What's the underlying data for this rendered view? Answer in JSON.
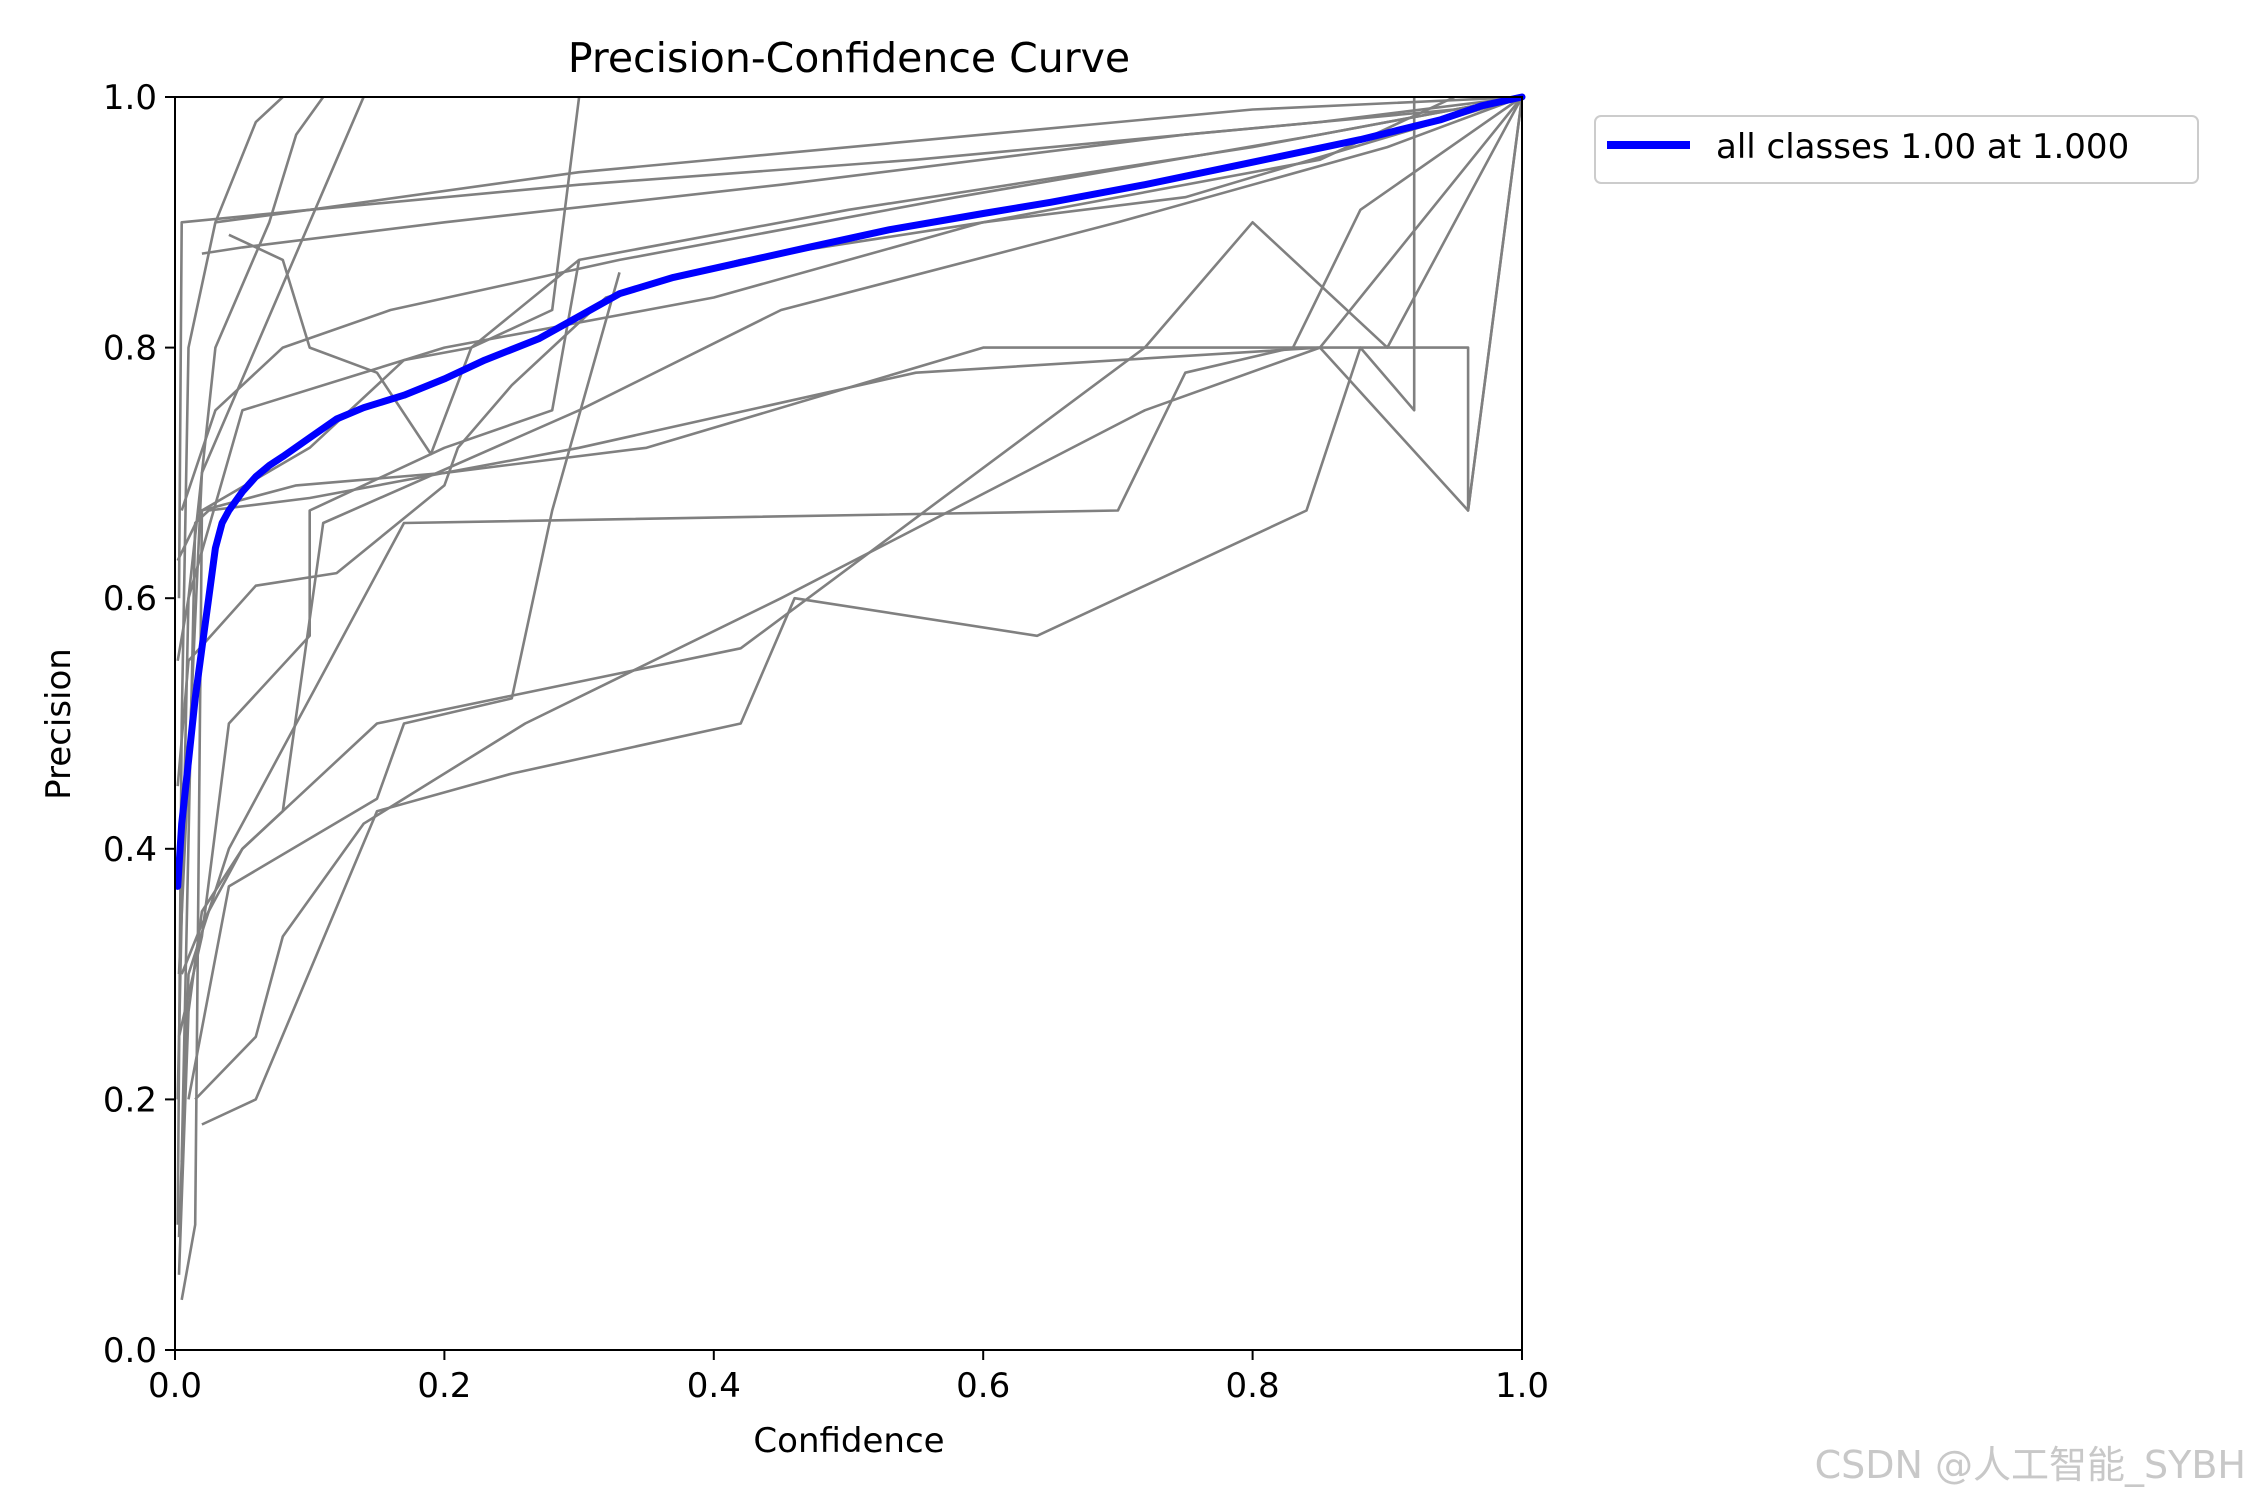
{
  "chart_data": {
    "type": "line",
    "title": "Precision-Confidence Curve",
    "xlabel": "Confidence",
    "ylabel": "Precision",
    "xlim": [
      0.0,
      1.0
    ],
    "ylim": [
      0.0,
      1.0
    ],
    "xticks": [
      "0.0",
      "0.2",
      "0.4",
      "0.6",
      "0.8",
      "1.0"
    ],
    "yticks": [
      "0.0",
      "0.2",
      "0.4",
      "0.6",
      "0.8",
      "1.0"
    ],
    "grid": false,
    "legend_position": "outside-top-right",
    "class_color": "#808080",
    "series": [
      {
        "name": "all classes 1.00 at 1.000",
        "color": "#0000ff",
        "x": [
          0.002,
          0.005,
          0.01,
          0.015,
          0.02,
          0.025,
          0.03,
          0.035,
          0.04,
          0.05,
          0.06,
          0.07,
          0.08,
          0.1,
          0.12,
          0.14,
          0.17,
          0.2,
          0.23,
          0.27,
          0.3,
          0.33,
          0.37,
          0.42,
          0.47,
          0.53,
          0.6,
          0.65,
          0.72,
          0.8,
          0.88,
          0.94,
          0.97,
          1.0
        ],
        "values": [
          0.37,
          0.42,
          0.47,
          0.52,
          0.56,
          0.6,
          0.64,
          0.66,
          0.67,
          0.685,
          0.697,
          0.706,
          0.713,
          0.728,
          0.743,
          0.752,
          0.762,
          0.775,
          0.79,
          0.807,
          0.825,
          0.843,
          0.856,
          0.868,
          0.88,
          0.894,
          0.907,
          0.916,
          0.93,
          0.948,
          0.966,
          0.982,
          0.993,
          1.0
        ]
      }
    ],
    "class_curves": [
      {
        "x": [
          0.002,
          0.005,
          0.01,
          0.03,
          0.06,
          0.08
        ],
        "values": [
          0.1,
          0.5,
          0.8,
          0.9,
          0.98,
          1.0
        ]
      },
      {
        "x": [
          0.002,
          0.01,
          0.03,
          0.07,
          0.09,
          0.11
        ],
        "values": [
          0.2,
          0.6,
          0.8,
          0.9,
          0.97,
          1.0
        ]
      },
      {
        "x": [
          0.003,
          0.02,
          0.06,
          0.12,
          0.14
        ],
        "values": [
          0.3,
          0.7,
          0.8,
          0.95,
          1.0
        ]
      },
      {
        "x": [
          0.003,
          0.005,
          0.1,
          0.3,
          0.6,
          0.8,
          1.0
        ],
        "values": [
          0.6,
          0.9,
          0.91,
          0.94,
          0.97,
          0.99,
          1.0
        ]
      },
      {
        "x": [
          0.005,
          0.03,
          0.08,
          0.16,
          0.33,
          0.58,
          0.85,
          1.0
        ],
        "values": [
          0.67,
          0.75,
          0.8,
          0.83,
          0.87,
          0.92,
          0.97,
          1.0
        ]
      },
      {
        "x": [
          0.02,
          0.05,
          0.2,
          0.45,
          0.75,
          0.95,
          1.0
        ],
        "values": [
          0.875,
          0.88,
          0.9,
          0.93,
          0.97,
          0.99,
          1.0
        ]
      },
      {
        "x": [
          0.03,
          0.1,
          0.3,
          0.55,
          0.85,
          1.0
        ],
        "values": [
          0.9,
          0.91,
          0.93,
          0.95,
          0.98,
          1.0
        ]
      },
      {
        "x": [
          0.04,
          0.08,
          0.1,
          0.15,
          0.19,
          0.22,
          0.3,
          0.5,
          0.8,
          1.0
        ],
        "values": [
          0.89,
          0.87,
          0.8,
          0.78,
          0.715,
          0.8,
          0.87,
          0.91,
          0.96,
          1.0
        ]
      },
      {
        "x": [
          0.002,
          0.02,
          0.1,
          0.17,
          0.22,
          0.28,
          0.3
        ],
        "values": [
          0.63,
          0.67,
          0.72,
          0.79,
          0.8,
          0.83,
          1.0
        ]
      },
      {
        "x": [
          0.002,
          0.01,
          0.06,
          0.12,
          0.2,
          0.21,
          0.25,
          0.32,
          0.42,
          0.6,
          0.75,
          1.0
        ],
        "values": [
          0.45,
          0.55,
          0.61,
          0.62,
          0.69,
          0.72,
          0.77,
          0.84,
          0.87,
          0.9,
          0.92,
          1.0
        ]
      },
      {
        "x": [
          0.002,
          0.01,
          0.05,
          0.2,
          0.4,
          0.6,
          0.85,
          0.95
        ],
        "values": [
          0.55,
          0.6,
          0.75,
          0.8,
          0.84,
          0.9,
          0.95,
          1.0
        ]
      },
      {
        "x": [
          0.005,
          0.02,
          0.05,
          0.08,
          0.11,
          0.3,
          0.45,
          0.7,
          0.9,
          1.0
        ],
        "values": [
          0.3,
          0.34,
          0.4,
          0.43,
          0.66,
          0.75,
          0.83,
          0.9,
          0.96,
          1.0
        ]
      },
      {
        "x": [
          0.003,
          0.02,
          0.04,
          0.1,
          0.1,
          0.2,
          0.28,
          0.3
        ],
        "values": [
          0.25,
          0.33,
          0.5,
          0.57,
          0.67,
          0.72,
          0.75,
          0.87
        ]
      },
      {
        "x": [
          0.01,
          0.04,
          0.15,
          0.17,
          0.25,
          0.28,
          0.33
        ],
        "values": [
          0.2,
          0.37,
          0.44,
          0.5,
          0.52,
          0.67,
          0.86
        ]
      },
      {
        "x": [
          0.015,
          0.06,
          0.08,
          0.14,
          0.26,
          0.45,
          0.72,
          0.85,
          0.96,
          1.0
        ],
        "values": [
          0.2,
          0.25,
          0.33,
          0.42,
          0.5,
          0.6,
          0.75,
          0.8,
          0.67,
          1.0
        ]
      },
      {
        "x": [
          0.02,
          0.06,
          0.15,
          0.25,
          0.42,
          0.46,
          0.64,
          0.84,
          0.88,
          0.92,
          0.92
        ],
        "values": [
          0.18,
          0.2,
          0.43,
          0.46,
          0.5,
          0.6,
          0.57,
          0.67,
          0.8,
          0.75,
          1.0
        ]
      },
      {
        "x": [
          0.003,
          0.01,
          0.04,
          0.17,
          0.7,
          0.75,
          0.83,
          0.88,
          1.0
        ],
        "values": [
          0.09,
          0.3,
          0.4,
          0.66,
          0.67,
          0.78,
          0.8,
          0.91,
          1.0
        ]
      },
      {
        "x": [
          0.003,
          0.01,
          0.02,
          0.05,
          0.15,
          0.42,
          0.72,
          0.8,
          0.9,
          1.0
        ],
        "values": [
          0.06,
          0.27,
          0.35,
          0.4,
          0.5,
          0.56,
          0.8,
          0.9,
          0.8,
          1.0
        ]
      },
      {
        "x": [
          0.005,
          0.015,
          0.02,
          0.09,
          0.2,
          0.35,
          0.6,
          0.96,
          0.96,
          1.0
        ],
        "values": [
          0.04,
          0.1,
          0.67,
          0.69,
          0.7,
          0.72,
          0.8,
          0.8,
          0.67,
          1.0
        ]
      },
      {
        "x": [
          0.005,
          0.015,
          0.025,
          0.1,
          0.3,
          0.55,
          0.85,
          1.0
        ],
        "values": [
          0.15,
          0.66,
          0.67,
          0.68,
          0.72,
          0.78,
          0.8,
          1.0
        ]
      }
    ]
  },
  "watermark": "CSDN @人工智能_SYBH"
}
